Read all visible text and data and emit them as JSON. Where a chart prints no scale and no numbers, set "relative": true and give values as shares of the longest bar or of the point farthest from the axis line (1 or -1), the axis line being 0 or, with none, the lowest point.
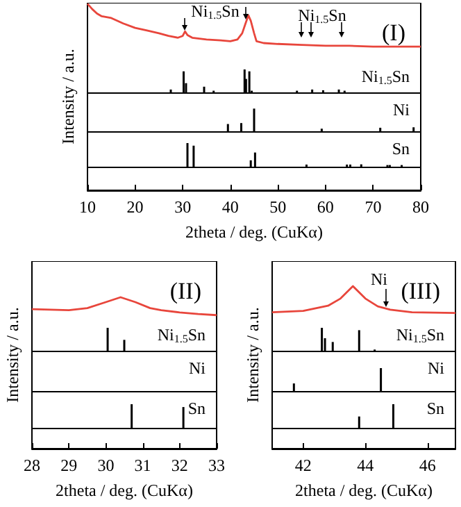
{
  "chart_data": [
    {
      "type": "line",
      "relative": true,
      "title": "(I)",
      "ylabel": "Intensity / a.u.",
      "xlim": [
        10,
        80
      ],
      "tick_labels": false,
      "series": [
        {
          "color": "#e8463c",
          "x": [
            10,
            11,
            12,
            13,
            15,
            17.5,
            20,
            22.5,
            25,
            27,
            29,
            30,
            30.5,
            31,
            32,
            35,
            38,
            40,
            41.5,
            42.5,
            43.2,
            43.8,
            44.3,
            45,
            45.5,
            47,
            50,
            55,
            60,
            65,
            70,
            75,
            80
          ],
          "values": [
            1.0,
            0.94,
            0.89,
            0.86,
            0.84,
            0.78,
            0.73,
            0.7,
            0.67,
            0.64,
            0.62,
            0.64,
            0.69,
            0.65,
            0.62,
            0.6,
            0.59,
            0.58,
            0.6,
            0.67,
            0.78,
            0.87,
            0.81,
            0.67,
            0.58,
            0.56,
            0.55,
            0.54,
            0.53,
            0.53,
            0.52,
            0.52,
            0.52
          ]
        }
      ],
      "annotations": [
        "Ni$_{1.5}$Sn",
        "Ni$_{1.5}$Sn"
      ]
    },
    {
      "type": "bar",
      "relative": true,
      "xlim": [
        10,
        80
      ],
      "tick_labels": false,
      "series": [
        {
          "name": "Ni$_{1.5}$Sn",
          "color": "#000000",
          "x": [
            27.5,
            30.2,
            30.7,
            34.5,
            36.5,
            43.0,
            43.3,
            44.0,
            44.5,
            54,
            57.2,
            59.5,
            62.8,
            64
          ],
          "values": [
            0.15,
            0.92,
            0.42,
            0.27,
            0.1,
            1.0,
            0.6,
            0.92,
            0.1,
            0.1,
            0.15,
            0.12,
            0.15,
            0.1
          ]
        }
      ]
    },
    {
      "type": "bar",
      "relative": true,
      "xlim": [
        10,
        80
      ],
      "tick_labels": false,
      "series": [
        {
          "name": "Ni",
          "color": "#000000",
          "x": [
            39.5,
            42.3,
            45.0,
            59.2,
            71.5,
            78.5
          ],
          "values": [
            0.34,
            0.38,
            1.0,
            0.14,
            0.18,
            0.2
          ]
        }
      ]
    },
    {
      "type": "bar",
      "relative": true,
      "xlabel": "2theta / deg. (CuKα)",
      "xlim": [
        10,
        80
      ],
      "xticks": [
        10,
        20,
        30,
        40,
        50,
        60,
        70,
        80
      ],
      "tick_labels": "x",
      "series": [
        {
          "name": "Sn",
          "color": "#000000",
          "x": [
            31.0,
            32.3,
            44.3,
            45.2,
            56,
            64.5,
            65.2,
            67.5,
            73,
            73.5,
            76
          ],
          "values": [
            1.0,
            0.89,
            0.27,
            0.6,
            0.09,
            0.09,
            0.09,
            0.1,
            0.07,
            0.07,
            0.07
          ]
        }
      ]
    },
    {
      "type": "line",
      "relative": true,
      "title": "(II)",
      "ylabel": "Intensity / a.u.",
      "xlim": [
        28,
        33
      ],
      "tick_labels": false,
      "series": [
        {
          "color": "#e8463c",
          "x": [
            28,
            29,
            29.5,
            30,
            30.4,
            30.8,
            31.2,
            31.5,
            32,
            32.5,
            33
          ],
          "values": [
            0.78,
            0.76,
            0.8,
            0.91,
            1.0,
            0.91,
            0.8,
            0.76,
            0.72,
            0.69,
            0.67
          ]
        }
      ]
    },
    {
      "type": "bar",
      "relative": true,
      "xlim": [
        28,
        33
      ],
      "tick_labels": false,
      "series": [
        {
          "name": "Ni$_{1.5}$Sn",
          "color": "#000000",
          "x": [
            30.05,
            30.5
          ],
          "values": [
            1.0,
            0.49
          ]
        }
      ]
    },
    {
      "type": "other",
      "series": [
        {
          "name": "Ni"
        }
      ]
    },
    {
      "type": "bar",
      "relative": true,
      "xlabel": "2theta / deg. (CuKα)",
      "xlim": [
        28,
        33
      ],
      "xticks": [
        28,
        29,
        30,
        31,
        32,
        33
      ],
      "tick_labels": "x",
      "series": [
        {
          "name": "Sn",
          "color": "#000000",
          "x": [
            30.7,
            32.1
          ],
          "values": [
            1.0,
            0.88
          ]
        }
      ]
    },
    {
      "type": "line",
      "relative": true,
      "title": "(III)",
      "ylabel": "Intensity / a.u.",
      "xlim": [
        41,
        46.9
      ],
      "tick_labels": false,
      "series": [
        {
          "color": "#e8463c",
          "x": [
            41,
            42,
            42.8,
            43.2,
            43.6,
            44,
            44.4,
            44.8,
            45.5,
            46.9
          ],
          "values": [
            0.6,
            0.62,
            0.7,
            0.81,
            1.0,
            0.81,
            0.69,
            0.64,
            0.6,
            0.59
          ]
        }
      ],
      "annotations": [
        "Ni"
      ]
    },
    {
      "type": "bar",
      "relative": true,
      "xlim": [
        41,
        46.9
      ],
      "tick_labels": false,
      "series": [
        {
          "name": "Ni$_{1.5}$Sn",
          "color": "#000000",
          "x": [
            42.6,
            42.7,
            42.95,
            43.8,
            44.3
          ],
          "values": [
            1.0,
            0.56,
            0.4,
            0.9,
            0.08
          ]
        }
      ]
    },
    {
      "type": "bar",
      "relative": true,
      "xlim": [
        41,
        46.9
      ],
      "tick_labels": false,
      "series": [
        {
          "name": "Ni",
          "color": "#000000",
          "x": [
            41.7,
            44.5
          ],
          "values": [
            0.35,
            1.0
          ]
        }
      ]
    },
    {
      "type": "bar",
      "relative": true,
      "xlabel": "2theta / deg. (CuKα)",
      "xlim": [
        41,
        46.9
      ],
      "xticks": [
        42,
        44,
        46
      ],
      "tick_labels": "x",
      "series": [
        {
          "name": "Sn",
          "color": "#000000",
          "x": [
            43.8,
            44.9
          ],
          "values": [
            0.48,
            1.0
          ]
        }
      ]
    }
  ]
}
